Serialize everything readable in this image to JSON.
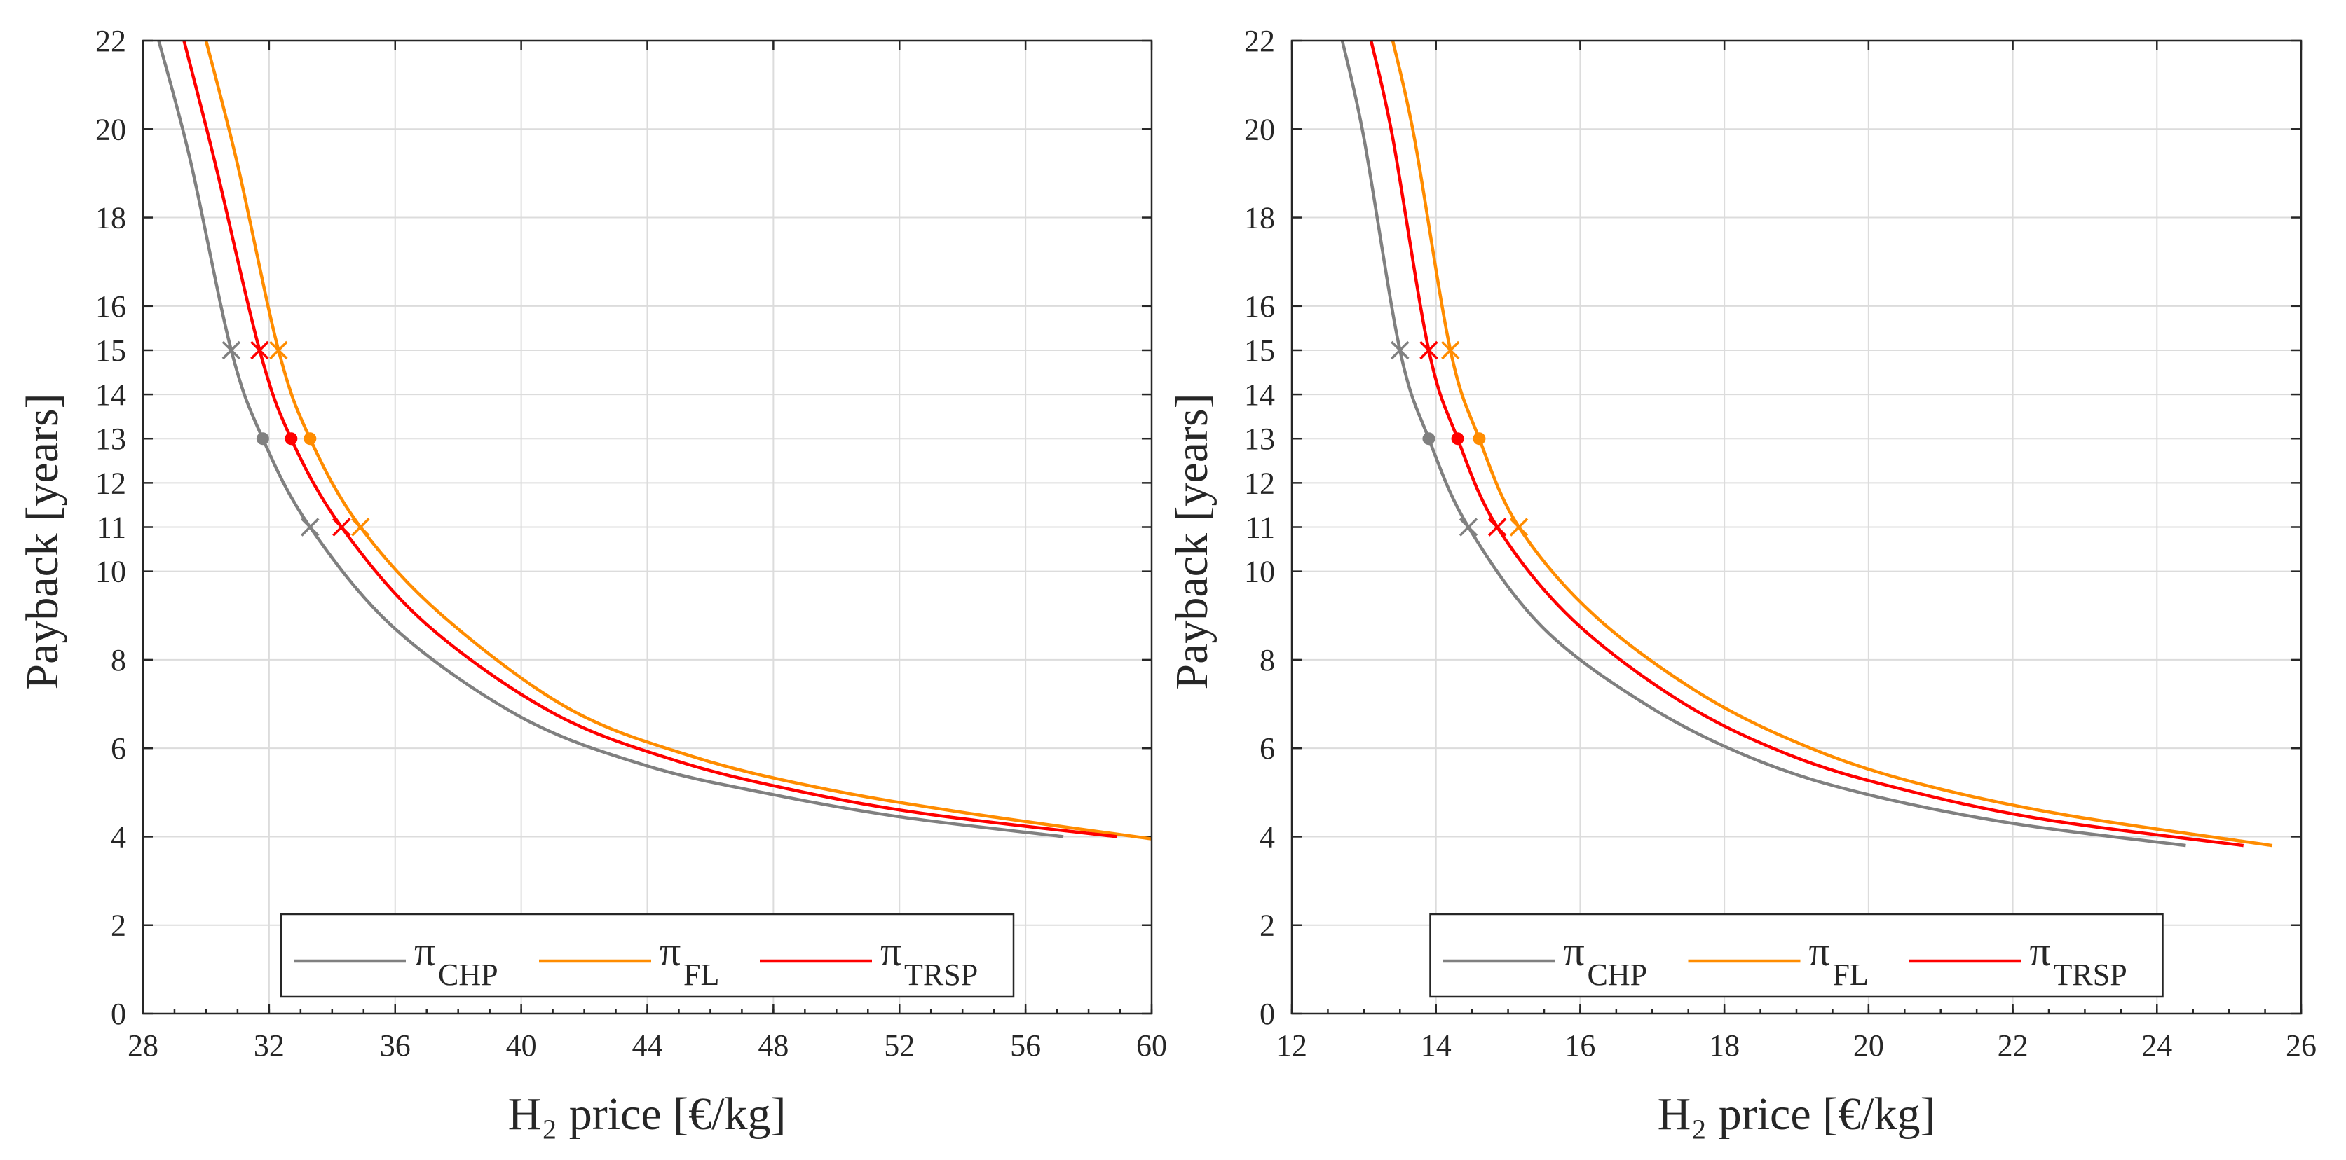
{
  "chart_data": [
    {
      "type": "line",
      "xlabel": "H₂ price [€/kg]",
      "ylabel": "Payback [years]",
      "xlim": [
        28,
        60
      ],
      "ylim": [
        0,
        22
      ],
      "xticks": [
        28,
        32,
        36,
        40,
        44,
        48,
        52,
        56,
        60
      ],
      "yticks": [
        0,
        2,
        4,
        6,
        8,
        10,
        11,
        12,
        13,
        14,
        15,
        16,
        18,
        20,
        22
      ],
      "grid": true,
      "legend_position": "bottom-center",
      "legend": [
        {
          "symbol": "π",
          "subscript": "CHP"
        },
        {
          "symbol": "π",
          "subscript": "FL"
        },
        {
          "symbol": "π",
          "subscript": "TRSP"
        }
      ],
      "series": [
        {
          "name": "πCHP",
          "color": "#808080",
          "x": [
            28.5,
            29.5,
            30.8,
            31.8,
            33.3,
            36,
            40,
            44,
            48,
            52,
            57.2
          ],
          "y": [
            22,
            19.3,
            15,
            13,
            11,
            8.7,
            6.7,
            5.6,
            4.95,
            4.45,
            4.0
          ]
        },
        {
          "name": "πFL",
          "color": "#FF8C00",
          "x": [
            30.0,
            31.0,
            32.3,
            33.3,
            34.9,
            37.5,
            41.5,
            45.5,
            49.5,
            54,
            60
          ],
          "y": [
            22,
            19.2,
            15,
            13,
            11,
            9.0,
            6.9,
            5.8,
            5.1,
            4.55,
            3.95
          ]
        },
        {
          "name": "πTRSP",
          "color": "#FF0000",
          "x": [
            29.3,
            30.3,
            31.7,
            32.7,
            34.3,
            37,
            41,
            45,
            49,
            53,
            58.9
          ],
          "y": [
            22,
            19.2,
            15,
            13,
            11,
            8.8,
            6.8,
            5.7,
            5.0,
            4.5,
            4.0
          ]
        }
      ],
      "markers": [
        {
          "series": "πCHP",
          "shape": "x",
          "x": 30.8,
          "y": 15
        },
        {
          "series": "πTRSP",
          "shape": "x",
          "x": 31.7,
          "y": 15
        },
        {
          "series": "πFL",
          "shape": "x",
          "x": 32.3,
          "y": 15
        },
        {
          "series": "πCHP",
          "shape": "dot",
          "x": 31.8,
          "y": 13
        },
        {
          "series": "πTRSP",
          "shape": "dot",
          "x": 32.7,
          "y": 13
        },
        {
          "series": "πFL",
          "shape": "dot",
          "x": 33.3,
          "y": 13
        },
        {
          "series": "πCHP",
          "shape": "x",
          "x": 33.3,
          "y": 11
        },
        {
          "series": "πTRSP",
          "shape": "x",
          "x": 34.3,
          "y": 11
        },
        {
          "series": "πFL",
          "shape": "x",
          "x": 34.9,
          "y": 11
        }
      ]
    },
    {
      "type": "line",
      "xlabel": "H₂ price [€/kg]",
      "ylabel": "Payback [years]",
      "xlim": [
        12,
        26
      ],
      "ylim": [
        0,
        22
      ],
      "xticks": [
        12,
        14,
        16,
        18,
        20,
        22,
        24,
        26
      ],
      "yticks": [
        0,
        2,
        4,
        6,
        8,
        10,
        11,
        12,
        13,
        14,
        15,
        16,
        18,
        20,
        22
      ],
      "grid": true,
      "legend_position": "bottom-center",
      "legend": [
        {
          "symbol": "π",
          "subscript": "CHP"
        },
        {
          "symbol": "π",
          "subscript": "FL"
        },
        {
          "symbol": "π",
          "subscript": "TRSP"
        }
      ],
      "series": [
        {
          "name": "πCHP",
          "color": "#808080",
          "x": [
            12.7,
            13.0,
            13.5,
            13.9,
            14.45,
            15.5,
            17,
            18.5,
            20,
            22,
            24.4
          ],
          "y": [
            22,
            19.8,
            15,
            13,
            11,
            8.7,
            6.9,
            5.7,
            4.95,
            4.3,
            3.8
          ]
        },
        {
          "name": "πFL",
          "color": "#FF8C00",
          "x": [
            13.4,
            13.7,
            14.2,
            14.6,
            15.15,
            16.2,
            17.7,
            19.2,
            20.7,
            22.7,
            25.6
          ],
          "y": [
            22,
            19.8,
            15,
            13,
            11,
            9.0,
            7.2,
            6.0,
            5.2,
            4.5,
            3.8
          ]
        },
        {
          "name": "πTRSP",
          "color": "#FF0000",
          "x": [
            13.1,
            13.4,
            13.9,
            14.3,
            14.85,
            15.9,
            17.4,
            18.9,
            20.4,
            22.4,
            25.2
          ],
          "y": [
            22,
            19.8,
            15,
            13,
            11,
            8.9,
            7.05,
            5.85,
            5.1,
            4.4,
            3.8
          ]
        }
      ],
      "markers": [
        {
          "series": "πCHP",
          "shape": "x",
          "x": 13.5,
          "y": 15
        },
        {
          "series": "πTRSP",
          "shape": "x",
          "x": 13.9,
          "y": 15
        },
        {
          "series": "πFL",
          "shape": "x",
          "x": 14.2,
          "y": 15
        },
        {
          "series": "πCHP",
          "shape": "dot",
          "x": 13.9,
          "y": 13
        },
        {
          "series": "πTRSP",
          "shape": "dot",
          "x": 14.3,
          "y": 13
        },
        {
          "series": "πFL",
          "shape": "dot",
          "x": 14.6,
          "y": 13
        },
        {
          "series": "πCHP",
          "shape": "x",
          "x": 14.45,
          "y": 11
        },
        {
          "series": "πTRSP",
          "shape": "x",
          "x": 14.85,
          "y": 11
        },
        {
          "series": "πFL",
          "shape": "x",
          "x": 15.15,
          "y": 11
        }
      ]
    }
  ]
}
